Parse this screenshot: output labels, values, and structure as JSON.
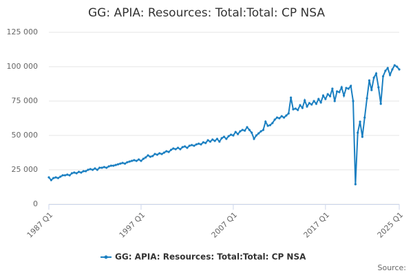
{
  "chart_data": {
    "type": "line",
    "title": "GG: APIA: Resources: Total:Total: CP NSA",
    "source": "Source:",
    "categories": [
      "1987 Q1",
      null,
      null,
      null,
      null,
      null,
      null,
      null,
      null,
      null,
      null,
      null,
      null,
      null,
      null,
      null,
      null,
      null,
      null,
      null,
      null,
      null,
      null,
      null,
      null,
      null,
      null,
      null,
      null,
      null,
      null,
      null,
      null,
      null,
      null,
      null,
      null,
      null,
      null,
      null,
      "1997 Q1",
      null,
      null,
      null,
      null,
      null,
      null,
      null,
      null,
      null,
      null,
      null,
      null,
      null,
      null,
      null,
      null,
      null,
      null,
      null,
      null,
      null,
      null,
      null,
      null,
      null,
      null,
      null,
      null,
      null,
      null,
      null,
      null,
      null,
      null,
      null,
      null,
      null,
      null,
      null,
      "2007 Q1",
      null,
      null,
      null,
      null,
      null,
      null,
      null,
      null,
      null,
      null,
      null,
      null,
      null,
      null,
      null,
      null,
      null,
      null,
      null,
      null,
      null,
      null,
      null,
      null,
      null,
      null,
      null,
      null,
      null,
      null,
      null,
      null,
      null,
      null,
      null,
      null,
      null,
      null,
      null,
      "2017 Q1",
      null,
      null,
      null,
      null,
      null,
      null,
      null,
      null,
      null,
      null,
      null,
      null,
      null,
      null,
      null,
      null,
      null,
      null,
      null,
      null,
      null,
      null,
      null,
      null,
      null,
      null,
      null,
      null,
      null,
      null,
      null,
      "2025 Q1"
    ],
    "series": [
      {
        "name": "GG: APIA: Resources: Total:Total: CP NSA",
        "color": "#1a7fc1",
        "values": [
          19500,
          17500,
          19000,
          19500,
          19000,
          20000,
          21000,
          21000,
          21500,
          21000,
          22500,
          23000,
          22500,
          23500,
          23000,
          24000,
          24000,
          25000,
          25500,
          25000,
          26000,
          25000,
          26500,
          26500,
          27000,
          26500,
          27500,
          28000,
          28000,
          28500,
          29000,
          29500,
          30000,
          29500,
          30500,
          31000,
          31500,
          32000,
          31500,
          32500,
          31500,
          33000,
          34000,
          35500,
          34500,
          35000,
          36500,
          36000,
          37000,
          36500,
          37500,
          38500,
          38000,
          39500,
          40500,
          40000,
          41000,
          40000,
          41500,
          42000,
          41000,
          42500,
          43000,
          42500,
          43500,
          44000,
          43500,
          45000,
          44500,
          46500,
          45500,
          47000,
          46000,
          47500,
          45500,
          48000,
          49000,
          47500,
          49500,
          50500,
          50000,
          52500,
          51000,
          53000,
          54000,
          53500,
          56000,
          54000,
          52000,
          47500,
          50000,
          51500,
          53000,
          54000,
          60000,
          57000,
          57500,
          59000,
          61500,
          63000,
          62500,
          64000,
          63000,
          64500,
          66000,
          77500,
          69000,
          69500,
          68500,
          72000,
          70000,
          75500,
          71000,
          73500,
          72500,
          75000,
          73000,
          76500,
          74000,
          79000,
          76500,
          80000,
          78500,
          84000,
          75000,
          82000,
          81500,
          85000,
          79000,
          84500,
          84000,
          86000,
          75000,
          14500,
          52000,
          60000,
          49000,
          63000,
          77000,
          90000,
          83000,
          92000,
          95000,
          85000,
          73000,
          93000,
          97000,
          99000,
          94000,
          98000,
          101000,
          100000,
          98000
        ]
      }
    ],
    "ylim": [
      0,
      125000
    ],
    "yticks": [
      0,
      {
        "value": 25000,
        "label": "25 000"
      },
      {
        "value": 50000,
        "label": "50 000"
      },
      {
        "value": 75000,
        "label": "75 000"
      },
      {
        "value": 100000,
        "label": "100 000"
      },
      {
        "value": 125000,
        "label": "125 000"
      }
    ],
    "grid": true
  }
}
